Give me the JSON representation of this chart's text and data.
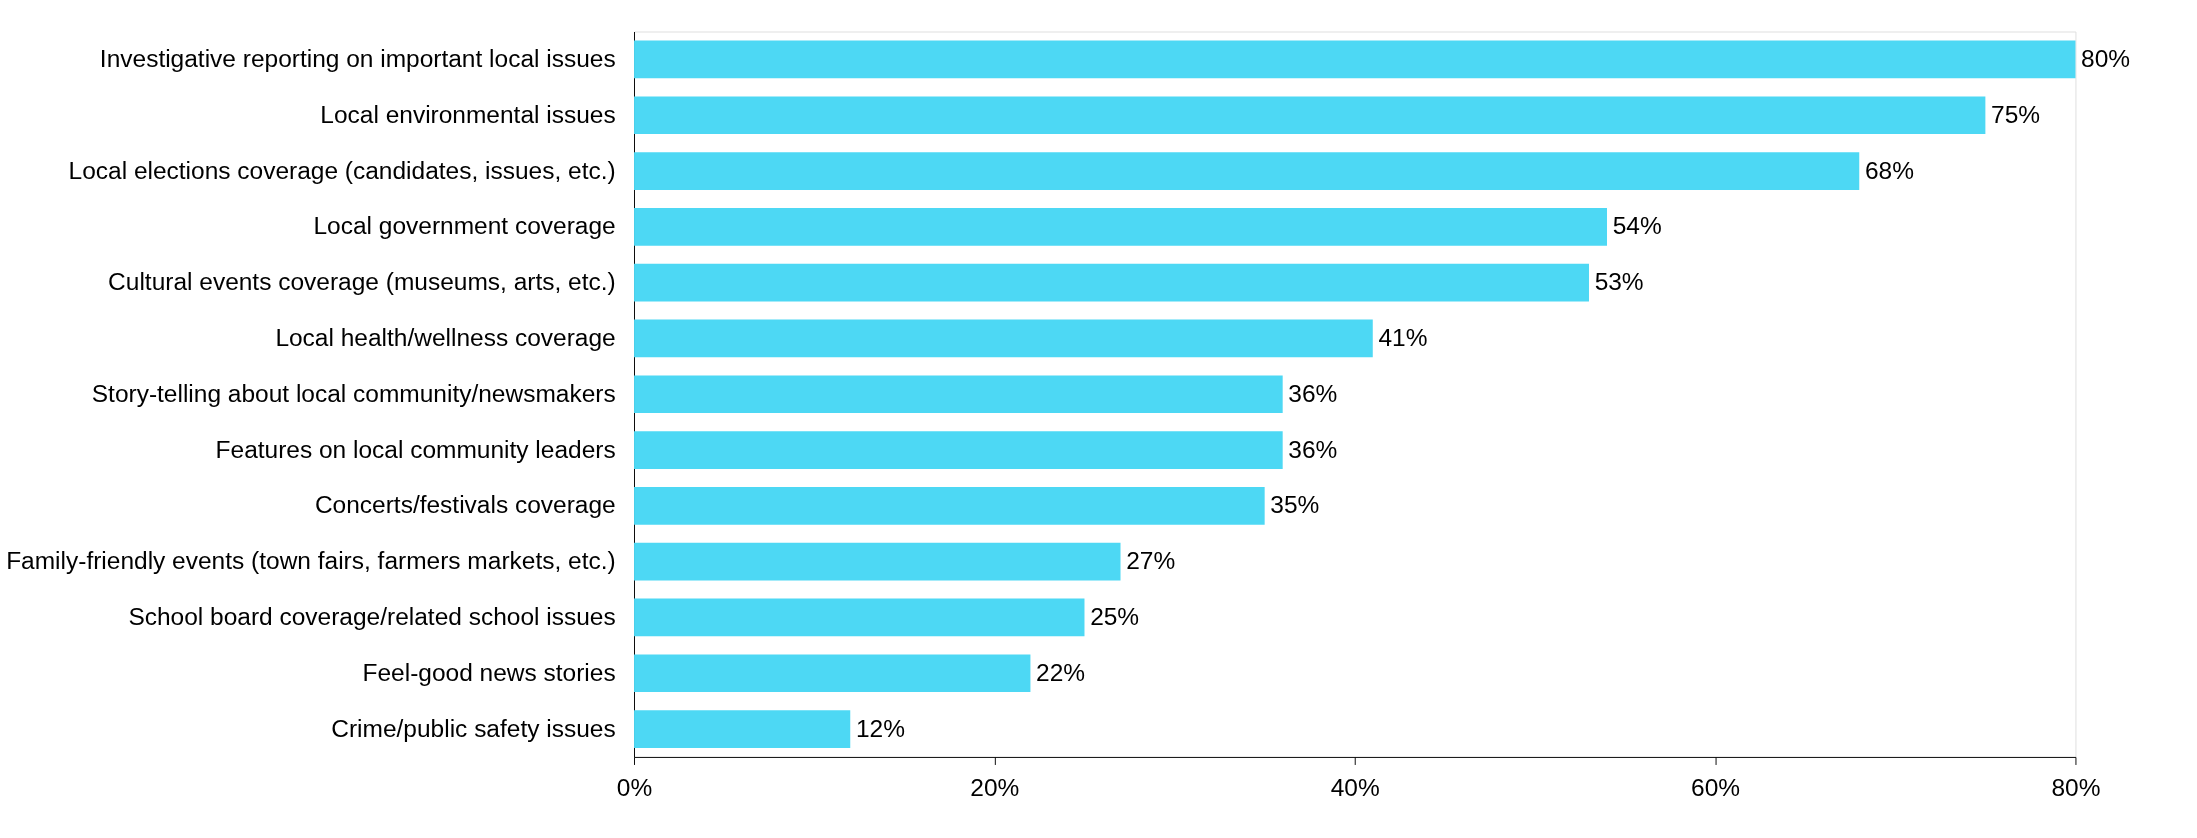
{
  "chart_data": {
    "type": "bar",
    "orientation": "horizontal",
    "categories": [
      "Investigative reporting on important local issues",
      "Local environmental issues",
      "Local elections coverage (candidates, issues, etc.)",
      "Local government coverage",
      "Cultural events coverage (museums, arts, etc.)",
      "Local health/wellness coverage",
      "Story-telling about local community/newsmakers",
      "Features on local community leaders",
      "Concerts/festivals coverage",
      "Family-friendly events (town fairs, farmers markets, etc.)",
      "School board coverage/related school issues",
      "Feel-good news stories",
      "Crime/public safety issues"
    ],
    "values": [
      80,
      75,
      68,
      54,
      53,
      41,
      36,
      36,
      35,
      27,
      25,
      22,
      12
    ],
    "value_labels": [
      "80%",
      "75%",
      "68%",
      "54%",
      "53%",
      "41%",
      "36%",
      "36%",
      "35%",
      "27%",
      "25%",
      "22%",
      "12%"
    ],
    "color": "#4dd8f4",
    "xlim": [
      0,
      80
    ],
    "xticks": [
      {
        "value": 0,
        "label": "0%"
      },
      {
        "value": 20,
        "label": "20%"
      },
      {
        "value": 40,
        "label": "40%"
      },
      {
        "value": 60,
        "label": "60%"
      },
      {
        "value": 80,
        "label": "80%"
      }
    ],
    "grid": false
  }
}
